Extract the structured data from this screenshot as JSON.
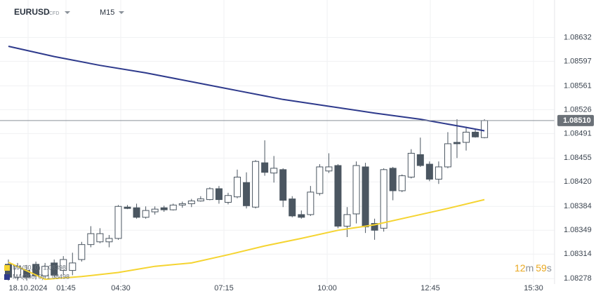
{
  "chart_data": {
    "type": "candlestick",
    "symbol": "EURUSD",
    "instrument_type": "CFD",
    "timeframe": "M15",
    "ylim": [
      1.0827,
      1.08687
    ],
    "yticks": [
      1.08632,
      1.08597,
      1.08561,
      1.08526,
      1.08491,
      1.08455,
      {
        "value": 1.0842,
        "label": "1.08420"
      },
      1.08384,
      1.08349,
      1.08314,
      1.08278
    ],
    "xlim": [
      -0.92,
      59.66
    ],
    "xticks": [
      {
        "value": 2.15,
        "label": "18.10.2024"
      },
      {
        "value": 6.29,
        "label": "01:45"
      },
      {
        "value": 12.27,
        "label": "04:30"
      },
      {
        "value": 23.54,
        "label": "07:15"
      },
      {
        "value": 34.82,
        "label": "10:00"
      },
      {
        "value": 46.09,
        "label": "12:45"
      },
      {
        "value": 57.36,
        "label": "15:30"
      }
    ],
    "grid": true,
    "last_price": {
      "value": 1.0851,
      "label": "1.08510"
    },
    "countdown": {
      "minutes": "12",
      "minutes_unit": "m",
      "seconds": "59",
      "seconds_unit": "s"
    },
    "up_color": "#ffffff",
    "down_color": "#4b5661",
    "candles": {
      "open": [
        1.08299,
        1.0828,
        1.0829,
        1.08299,
        1.08282,
        1.08301,
        1.0829,
        1.0829,
        1.08306,
        1.08328,
        1.08332,
        1.08332,
        1.08337,
        1.08383,
        1.08382,
        1.08368,
        1.08376,
        1.08382,
        1.08379,
        1.08386,
        1.08388,
        1.08392,
        1.08394,
        1.0841,
        1.0839,
        1.08398,
        1.08419,
        1.08383,
        1.08448,
        1.08433,
        1.08438,
        1.08395,
        1.08372,
        1.08372,
        1.08403,
        1.08436,
        1.08444,
        1.08355,
        1.08373,
        1.08442,
        1.08359,
        1.08352,
        1.0844,
        1.08407,
        1.08427,
        1.0846,
        1.08446,
        1.08424,
        1.08442,
        1.08478,
        1.08478,
        1.08493,
        1.08485
      ],
      "high": [
        1.08306,
        1.08301,
        1.08298,
        1.08303,
        1.08301,
        1.08306,
        1.08311,
        1.08316,
        1.08332,
        1.08355,
        1.08352,
        1.08342,
        1.08386,
        1.08386,
        1.08388,
        1.08384,
        1.08384,
        1.08385,
        1.08388,
        1.08391,
        1.08395,
        1.08399,
        1.08412,
        1.08414,
        1.08404,
        1.08438,
        1.08434,
        1.08452,
        1.08481,
        1.08458,
        1.0844,
        1.08399,
        1.08378,
        1.08414,
        1.08446,
        1.08462,
        1.08446,
        1.08383,
        1.0845,
        1.08448,
        1.08366,
        1.0844,
        1.08442,
        1.08431,
        1.08468,
        1.08485,
        1.0845,
        1.0845,
        1.08493,
        1.08512,
        1.08501,
        1.08497,
        1.08512
      ],
      "low": [
        1.08275,
        1.08275,
        1.08275,
        1.08277,
        1.08277,
        1.0828,
        1.08283,
        1.08283,
        1.08303,
        1.08324,
        1.0833,
        1.08324,
        1.08335,
        1.0838,
        1.08366,
        1.08366,
        1.08372,
        1.08376,
        1.08378,
        1.08382,
        1.08383,
        1.08391,
        1.08393,
        1.08388,
        1.08387,
        1.08396,
        1.08381,
        1.08381,
        1.08429,
        1.08419,
        1.08383,
        1.08368,
        1.08366,
        1.0837,
        1.084,
        1.08433,
        1.08352,
        1.08339,
        1.08359,
        1.08345,
        1.08335,
        1.08347,
        1.08393,
        1.08405,
        1.08425,
        1.08442,
        1.08421,
        1.08417,
        1.0844,
        1.08455,
        1.08466,
        1.08485,
        1.08484
      ],
      "close": [
        1.0828,
        1.08296,
        1.0828,
        1.08282,
        1.08296,
        1.08283,
        1.08306,
        1.08301,
        1.08328,
        1.08344,
        1.08344,
        1.08337,
        1.08384,
        1.08381,
        1.08368,
        1.08378,
        1.0838,
        1.08379,
        1.08386,
        1.08388,
        1.08392,
        1.08395,
        1.0841,
        1.08394,
        1.084,
        1.08427,
        1.08385,
        1.0845,
        1.08434,
        1.0844,
        1.08393,
        1.0837,
        1.08368,
        1.08405,
        1.08442,
        1.08442,
        1.08355,
        1.08372,
        1.08444,
        1.08354,
        1.08349,
        1.08438,
        1.08407,
        1.08429,
        1.08462,
        1.08444,
        1.08424,
        1.08442,
        1.08476,
        1.08476,
        1.08493,
        1.08486,
        1.0851
      ]
    },
    "series": [
      {
        "name": "MA(50, 0)",
        "color": "#f5d431",
        "legend_value": 1.08398,
        "x": [
          0,
          4,
          8,
          12,
          16,
          20,
          24,
          28,
          32,
          36,
          40,
          44,
          48,
          52
        ],
        "values": [
          1.08302,
          1.08277,
          1.08281,
          1.08287,
          1.08296,
          1.08301,
          1.08313,
          1.08326,
          1.08337,
          1.08349,
          1.08357,
          1.08369,
          1.08381,
          1.08394
        ]
      },
      {
        "name": "MA(200, 0)",
        "color": "#2e3a8c",
        "legend_value": 1.08498,
        "x": [
          0,
          5,
          10,
          15,
          20,
          25,
          30,
          35,
          40,
          45,
          50,
          52
        ],
        "values": [
          1.08619,
          1.08604,
          1.08591,
          1.0858,
          1.08567,
          1.08554,
          1.08541,
          1.08531,
          1.08521,
          1.08512,
          1.085,
          1.08495
        ]
      }
    ]
  }
}
